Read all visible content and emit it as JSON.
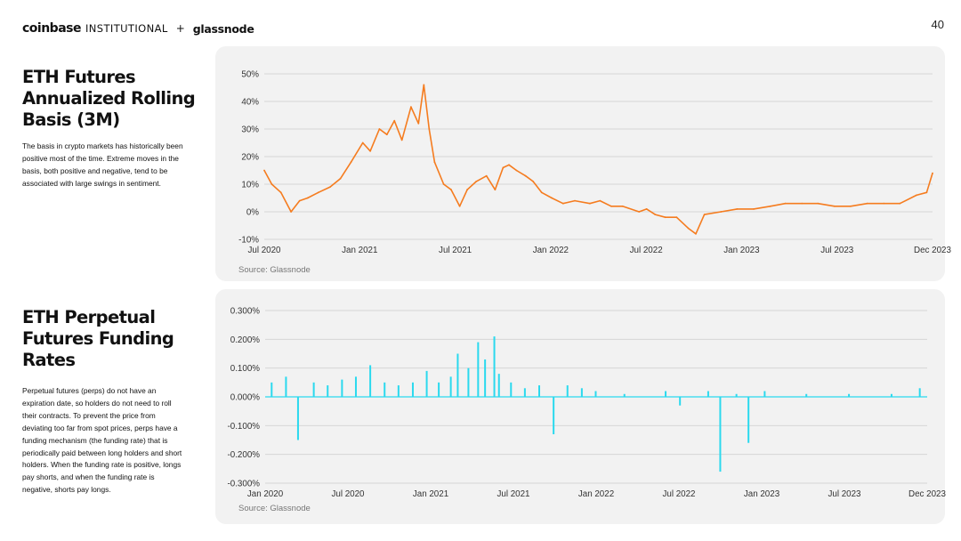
{
  "header": {
    "brand_coinbase": "coinbase",
    "brand_institutional": "INSTITUTIONAL",
    "brand_plus": "+",
    "brand_glassnode": "glassnode",
    "page_number": "40"
  },
  "sections": [
    {
      "title": "ETH Futures Annualized Rolling Basis (3M)",
      "body": "The basis in crypto markets has historically been positive most of the time. Extreme moves in the basis, both positive and negative, tend to be associated with large swings in sentiment."
    },
    {
      "title": "ETH Perpetual Futures Funding Rates",
      "body": "Perpetual futures (perps) do not have an expiration date, so holders do not need to roll their contracts. To prevent the price from deviating too far from spot prices, perps have a funding mechanism (the funding rate) that is periodically paid between long holders and short holders. When the funding rate is positive, longs pay shorts, and when the funding rate is negative, shorts pay longs."
    }
  ],
  "chart_data": [
    {
      "type": "line",
      "title": "",
      "source": "Source: Glassnode",
      "color": "#f57c1f",
      "x_tick_labels": [
        "Jul 2020",
        "Jan 2021",
        "Jul 2021",
        "Jan 2022",
        "Jul 2022",
        "Jan 2023",
        "Jul 2023",
        "Dec 2023"
      ],
      "y_tick_labels": [
        "50%",
        "40%",
        "30%",
        "20%",
        "10%",
        "0%",
        "-10%"
      ],
      "ylim": [
        -10,
        50
      ],
      "xlim": [
        "2020-07-01",
        "2023-12-01"
      ],
      "grid": true,
      "series": [
        {
          "x": [
            "2020-07-01",
            "2020-07-15",
            "2020-08-01",
            "2020-08-20",
            "2020-09-05",
            "2020-09-20",
            "2020-10-10",
            "2020-11-01",
            "2020-11-20",
            "2020-12-10",
            "2021-01-01",
            "2021-01-15",
            "2021-02-01",
            "2021-02-15",
            "2021-03-01",
            "2021-03-15",
            "2021-04-01",
            "2021-04-15",
            "2021-04-25",
            "2021-05-05",
            "2021-05-15",
            "2021-06-01",
            "2021-06-15",
            "2021-07-01",
            "2021-07-15",
            "2021-08-01",
            "2021-08-20",
            "2021-09-05",
            "2021-09-20",
            "2021-10-01",
            "2021-10-15",
            "2021-11-01",
            "2021-11-15",
            "2021-12-01",
            "2021-12-20",
            "2022-01-10",
            "2022-02-01",
            "2022-03-01",
            "2022-03-20",
            "2022-04-10",
            "2022-05-01",
            "2022-06-01",
            "2022-06-15",
            "2022-07-01",
            "2022-07-20",
            "2022-08-10",
            "2022-09-01",
            "2022-09-15",
            "2022-10-01",
            "2022-11-01",
            "2022-12-01",
            "2023-01-01",
            "2023-02-01",
            "2023-03-01",
            "2023-04-01",
            "2023-05-01",
            "2023-06-01",
            "2023-07-01",
            "2023-08-01",
            "2023-09-01",
            "2023-10-01",
            "2023-11-01",
            "2023-11-20",
            "2023-12-01"
          ],
          "values": [
            15,
            10,
            7,
            0,
            4,
            5,
            7,
            9,
            12,
            18,
            25,
            22,
            30,
            28,
            33,
            26,
            38,
            32,
            46,
            30,
            18,
            10,
            8,
            2,
            8,
            11,
            13,
            8,
            16,
            17,
            15,
            13,
            11,
            7,
            5,
            3,
            4,
            3,
            4,
            2,
            2,
            0,
            1,
            -1,
            -2,
            -2,
            -6,
            -8,
            -1,
            0,
            1,
            1,
            2,
            3,
            3,
            3,
            2,
            2,
            3,
            3,
            3,
            6,
            7,
            14
          ]
        }
      ]
    },
    {
      "type": "bar",
      "title": "",
      "source": "Source: Glassnode",
      "color": "#2bd9ee",
      "x_tick_labels": [
        "Jan 2020",
        "Jul 2020",
        "Jan 2021",
        "Jul 2021",
        "Jan 2022",
        "Jul 2022",
        "Jan 2023",
        "Jul 2023",
        "Dec 2023"
      ],
      "y_tick_labels": [
        "0.300%",
        "0.200%",
        "0.100%",
        "0.000%",
        "-0.100%",
        "-0.200%",
        "-0.300%"
      ],
      "ylim": [
        -0.3,
        0.3
      ],
      "xlim": [
        "2020-01-01",
        "2023-12-01"
      ],
      "grid": true,
      "series": [
        {
          "x": [
            "2020-01-15",
            "2020-02-15",
            "2020-03-12",
            "2020-04-15",
            "2020-05-15",
            "2020-06-15",
            "2020-07-15",
            "2020-08-15",
            "2020-09-15",
            "2020-10-15",
            "2020-11-15",
            "2020-12-15",
            "2021-01-10",
            "2021-02-05",
            "2021-02-20",
            "2021-03-15",
            "2021-04-05",
            "2021-04-20",
            "2021-05-10",
            "2021-05-20",
            "2021-06-15",
            "2021-07-15",
            "2021-08-15",
            "2021-09-15",
            "2021-10-15",
            "2021-11-15",
            "2021-12-15",
            "2022-02-15",
            "2022-05-15",
            "2022-06-15",
            "2022-08-15",
            "2022-09-10",
            "2022-10-15",
            "2022-11-10",
            "2022-12-15",
            "2023-03-15",
            "2023-06-15",
            "2023-09-15",
            "2023-11-15"
          ],
          "values": [
            0.05,
            0.07,
            -0.15,
            0.05,
            0.04,
            0.06,
            0.07,
            0.11,
            0.05,
            0.04,
            0.05,
            0.09,
            0.05,
            0.07,
            0.15,
            0.1,
            0.19,
            0.13,
            0.21,
            0.08,
            0.05,
            0.03,
            0.04,
            -0.13,
            0.04,
            0.03,
            0.02,
            0.01,
            0.02,
            -0.03,
            0.02,
            -0.26,
            0.01,
            -0.16,
            0.02,
            0.01,
            0.01,
            0.01,
            0.03
          ]
        }
      ]
    }
  ]
}
